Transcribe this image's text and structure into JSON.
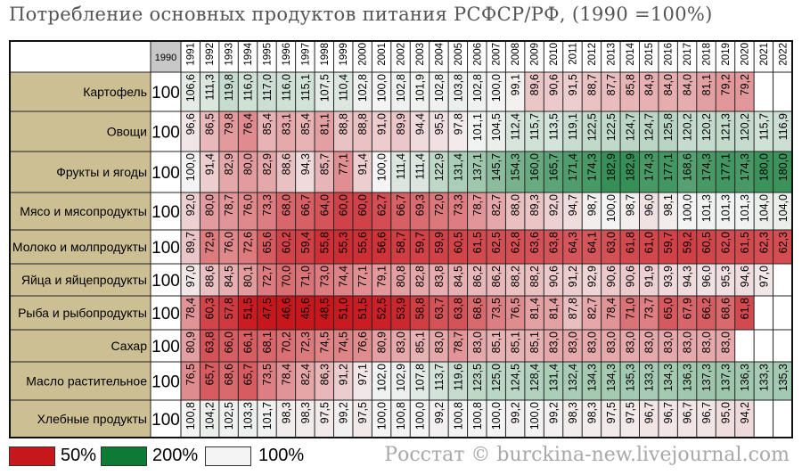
{
  "title": "Потребление основных продуктов питания РСФСР/РФ, (1990 =100%)",
  "credit": "Росстат © burckina-new.livejournal.com",
  "legend": [
    {
      "label": "50%",
      "color": "#c8161d"
    },
    {
      "label": "200%",
      "color": "#0d7a35"
    },
    {
      "label": "100%",
      "color": "#f4f4f4"
    }
  ],
  "chart_data": {
    "type": "heatmap",
    "base_year": "1990",
    "base_value": "100",
    "years": [
      "1991",
      "1992",
      "1993",
      "1994",
      "1995",
      "1996",
      "1997",
      "1998",
      "1999",
      "2000",
      "2001",
      "2002",
      "2003",
      "2004",
      "2005",
      "2006",
      "2007",
      "2008",
      "2009",
      "2010",
      "2011",
      "2012",
      "2013",
      "2014",
      "2015",
      "2016",
      "2017",
      "2018",
      "2019",
      "2020",
      "2021",
      "2022"
    ],
    "color_scale": {
      "low": 50,
      "mid": 100,
      "high": 200
    },
    "rows": [
      {
        "name": "Картофель",
        "values": [
          "106,6",
          "111,3",
          "119,8",
          "116,0",
          "117,0",
          "116,0",
          "115,1",
          "107,5",
          "110,4",
          "102,8",
          "100,0",
          "102,8",
          "101,9",
          "102,8",
          "103,8",
          "102,8",
          "100,0",
          "99,1",
          "89,6",
          "90,6",
          "91,5",
          "88,7",
          "87,7",
          "85,8",
          "84,9",
          "84,0",
          "84,0",
          "81,1",
          "79,2",
          "79,2",
          "",
          ""
        ]
      },
      {
        "name": "Овощи",
        "values": [
          "96,6",
          "86,5",
          "79,8",
          "76,4",
          "85,4",
          "83,1",
          "85,4",
          "81,1",
          "88,8",
          "88,8",
          "91,0",
          "89,9",
          "94,4",
          "95,5",
          "97,8",
          "101,1",
          "104,5",
          "112,4",
          "115,7",
          "113,5",
          "119,1",
          "122,5",
          "122,5",
          "124,7",
          "124,7",
          "125,8",
          "120,2",
          "120,2",
          "121,3",
          "120,2",
          "115,7",
          "116,9"
        ]
      },
      {
        "name": "Фрукты и ягоды",
        "values": [
          "100,0",
          "91,4",
          "82,9",
          "80,0",
          "82,9",
          "88,6",
          "94,3",
          "85,7",
          "77,1",
          "91,4",
          "100,0",
          "111,4",
          "111,4",
          "122,9",
          "131,4",
          "137,1",
          "145,7",
          "154,3",
          "160,0",
          "165,7",
          "171,4",
          "174,3",
          "182,9",
          "182,9",
          "174,3",
          "177,1",
          "168,6",
          "174,3",
          "177,1",
          "174,3",
          "180,0",
          "180,0"
        ]
      },
      {
        "name": "Мясо и мясопродукты",
        "values": [
          "92,0",
          "80,0",
          "78,7",
          "76,0",
          "73,3",
          "68,0",
          "66,7",
          "64,0",
          "60,0",
          "60,0",
          "62,7",
          "66,7",
          "69,3",
          "72,0",
          "73,3",
          "78,7",
          "82,7",
          "88,0",
          "89,3",
          "92,0",
          "94,7",
          "98,7",
          "100,0",
          "98,7",
          "96,0",
          "98,1",
          "100,0",
          "101,3",
          "101,3",
          "101,3",
          "104,0",
          "104,0"
        ]
      },
      {
        "name": "Молоко и молпродукты",
        "values": [
          "89,7",
          "72,9",
          "76,0",
          "72,6",
          "65,6",
          "60,2",
          "59,4",
          "55,8",
          "55,3",
          "55,6",
          "56,6",
          "58,7",
          "59,7",
          "59,9",
          "60,5",
          "61,5",
          "62,5",
          "62,8",
          "63,6",
          "63,8",
          "64,3",
          "64,1",
          "63,0",
          "61,8",
          "61,0",
          "59,7",
          "59,2",
          "60,5",
          "62,0",
          "61,5",
          "62,3",
          "62,3"
        ]
      },
      {
        "name": "Яйца и яйцепродукты",
        "values": [
          "97,0",
          "88,6",
          "84,5",
          "80,1",
          "72,7",
          "70,0",
          "71,0",
          "73,0",
          "74,4",
          "77,1",
          "79,1",
          "80,8",
          "82,8",
          "83,8",
          "84,5",
          "86,2",
          "86,2",
          "88,2",
          "88,2",
          "90,6",
          "91,2",
          "92,9",
          "90,6",
          "90,6",
          "91,9",
          "93,9",
          "94,3",
          "96,0",
          "95,3",
          "94,6",
          "97,0",
          ""
        ]
      },
      {
        "name": "Рыба и рыбопродукты",
        "values": [
          "78,4",
          "60,3",
          "57,8",
          "51,5",
          "47,5",
          "46,6",
          "45,6",
          "48,5",
          "51,0",
          "51,5",
          "52,5",
          "53,9",
          "58,8",
          "63,7",
          "63,8",
          "68,6",
          "73,5",
          "76,5",
          "81,4",
          "81,4",
          "87,8",
          "82,7",
          "78,4",
          "71,0",
          "73,7",
          "65,0",
          "67,9",
          "66,2",
          "68,6",
          "61,8",
          "",
          ""
        ]
      },
      {
        "name": "Сахар",
        "values": [
          "80,9",
          "63,8",
          "66,0",
          "66,1",
          "68,1",
          "70,2",
          "72,3",
          "74,5",
          "74,5",
          "76,6",
          "80,9",
          "83,0",
          "85,1",
          "83,0",
          "78,7",
          "83,0",
          "85,1",
          "85,1",
          "85,1",
          "83,0",
          "83,0",
          "83,0",
          "83,0",
          "83,0",
          "83,0",
          "83,0",
          "83,0",
          "83,0",
          "83,0",
          "",
          "",
          ""
        ]
      },
      {
        "name": "Масло растительное",
        "values": [
          "76,5",
          "65,7",
          "68,6",
          "65,7",
          "73,5",
          "78,4",
          "82,4",
          "86,3",
          "91,2",
          "97,1",
          "102,0",
          "102,9",
          "107,8",
          "113,7",
          "119,6",
          "123,5",
          "125,0",
          "124,5",
          "128,4",
          "131,4",
          "132,4",
          "134,3",
          "134,3",
          "135,3",
          "133,3",
          "134,3",
          "136,3",
          "137,3",
          "137,3",
          "136,3",
          "133,3",
          "135,3"
        ]
      },
      {
        "name": "Хлебные продукты",
        "values": [
          "100,8",
          "104,2",
          "102,5",
          "103,3",
          "101,7",
          "98,3",
          "98,3",
          "97,5",
          "99,2",
          "97,5",
          "100,0",
          "100,8",
          "100,0",
          "99,2",
          "100,8",
          "100,8",
          "100,0",
          "99,2",
          "100,0",
          "99,2",
          "98,3",
          "98,3",
          "97,5",
          "97,5",
          "96,7",
          "96,7",
          "96,7",
          "96,7",
          "95,0",
          "94,2",
          "",
          ""
        ]
      }
    ]
  }
}
